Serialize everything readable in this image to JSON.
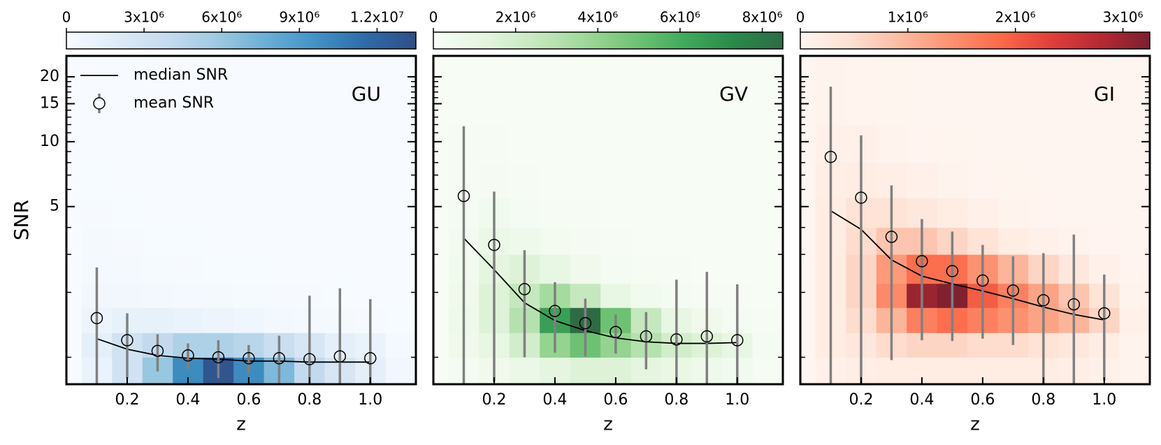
{
  "chart_data": [
    {
      "type": "heatmap",
      "label": "GU",
      "xlabel": "z",
      "ylabel": "SNR",
      "xlim": [
        0,
        1.15
      ],
      "xticks": [
        0.2,
        0.4,
        0.6,
        0.8,
        {
          "value": 1.0,
          "label": "1.0"
        }
      ],
      "ylim": [
        0.75,
        25
      ],
      "yscale": "log",
      "yticks": [
        5,
        10,
        15,
        20
      ],
      "yminor": [
        1,
        2,
        3,
        4,
        6,
        7,
        8,
        9,
        11,
        12,
        13,
        14,
        16,
        17,
        18,
        19
      ],
      "x_edges": [
        0.05,
        0.15,
        0.25,
        0.35,
        0.45,
        0.55,
        0.65,
        0.75,
        0.85,
        0.95,
        1.05,
        1.15
      ],
      "y_edges": [
        0.75,
        1,
        1.3,
        1.7,
        2.2,
        3,
        4,
        5.5,
        8,
        12,
        25
      ],
      "counts": [
        [
          1000000,
          3000000,
          6000000,
          10000000,
          13000000,
          10000000,
          7000000,
          4000000,
          2500000,
          1500000,
          500000
        ],
        [
          1500000,
          3000000,
          4000000,
          5000000,
          5000000,
          4500000,
          3500000,
          2500000,
          1500000,
          1000000,
          300000
        ],
        [
          800000,
          1200000,
          1200000,
          1000000,
          800000,
          600000,
          400000,
          300000,
          200000,
          100000,
          50000
        ],
        [
          500000,
          500000,
          400000,
          300000,
          200000,
          150000,
          100000,
          80000,
          50000,
          30000,
          10000
        ],
        [
          300000,
          200000,
          150000,
          100000,
          60000,
          40000,
          30000,
          20000,
          10000,
          10000,
          0
        ],
        [
          200000,
          100000,
          60000,
          40000,
          20000,
          10000,
          10000,
          0,
          0,
          0,
          0
        ],
        [
          100000,
          50000,
          20000,
          10000,
          0,
          0,
          0,
          0,
          0,
          0,
          0
        ],
        [
          50000,
          20000,
          10000,
          0,
          0,
          0,
          0,
          0,
          0,
          0,
          0
        ],
        [
          20000,
          10000,
          0,
          0,
          0,
          0,
          0,
          0,
          0,
          0,
          0
        ],
        [
          10000,
          0,
          0,
          0,
          0,
          0,
          0,
          0,
          0,
          0,
          0
        ]
      ],
      "cmap": [
        "#f7fbff",
        "#deebf7",
        "#c6dbef",
        "#9ecae1",
        "#6baed6",
        "#4292c6",
        "#2f6aa8",
        "#2f4f86"
      ],
      "colorbar": {
        "lim": [
          0,
          13500000
        ],
        "ticks": [
          0,
          {
            "value": 3000000,
            "label": "3x10⁶"
          },
          {
            "value": 6000000,
            "label": "6x10⁶"
          },
          {
            "value": 9000000,
            "label": "9x10⁶"
          },
          {
            "value": 12000000,
            "label": "1.2x10⁷"
          }
        ]
      },
      "legend": "upper left",
      "series": [
        {
          "name": "median SNR",
          "type": "line",
          "color": "#000000",
          "x": [
            0.1,
            0.2,
            0.3,
            0.4,
            0.5,
            0.6,
            0.7,
            0.8,
            0.9,
            1.0
          ],
          "values": [
            1.22,
            1.09,
            1.02,
            0.99,
            0.98,
            0.96,
            0.96,
            0.95,
            0.95,
            0.95
          ]
        },
        {
          "name": "mean SNR",
          "type": "errorbar",
          "color": "#808080",
          "x": [
            0.1,
            0.2,
            0.3,
            0.4,
            0.5,
            0.6,
            0.7,
            0.8,
            0.9,
            1.0
          ],
          "values": [
            1.52,
            1.2,
            1.07,
            1.02,
            1.0,
            0.99,
            0.99,
            0.98,
            1.01,
            0.99
          ],
          "errors": [
            1.09,
            0.4,
            0.21,
            0.14,
            0.2,
            0.15,
            0.27,
            0.95,
            1.08,
            0.87
          ]
        }
      ]
    },
    {
      "type": "heatmap",
      "label": "GV",
      "xlabel": "z",
      "xlim": [
        0,
        1.15
      ],
      "xticks": [
        0.2,
        0.4,
        0.6,
        0.8,
        {
          "value": 1.0,
          "label": "1.0"
        }
      ],
      "ylim": [
        0.75,
        25
      ],
      "yscale": "log",
      "yticks": [
        5,
        10,
        15,
        20
      ],
      "yminor": [
        1,
        2,
        3,
        4,
        6,
        7,
        8,
        9,
        11,
        12,
        13,
        14,
        16,
        17,
        18,
        19
      ],
      "x_edges": [
        0.05,
        0.15,
        0.25,
        0.35,
        0.45,
        0.55,
        0.65,
        0.75,
        0.85,
        0.95,
        1.05,
        1.15
      ],
      "y_edges": [
        0.75,
        1,
        1.3,
        1.7,
        2.2,
        3,
        4,
        5.5,
        8,
        12,
        25
      ],
      "counts": [
        [
          200000,
          500000,
          800000,
          1200000,
          1500000,
          1500000,
          1200000,
          900000,
          600000,
          400000,
          100000
        ],
        [
          500000,
          1000000,
          2000000,
          4000000,
          5000000,
          4000000,
          3000000,
          2000000,
          1500000,
          1000000,
          200000
        ],
        [
          600000,
          1500000,
          3000000,
          6500000,
          8500000,
          5000000,
          2500000,
          1000000,
          500000,
          200000,
          50000
        ],
        [
          500000,
          1500000,
          2500000,
          3500000,
          2500000,
          1000000,
          400000,
          200000,
          100000,
          50000,
          10000
        ],
        [
          400000,
          1200000,
          1500000,
          1000000,
          500000,
          200000,
          100000,
          50000,
          20000,
          10000,
          0
        ],
        [
          300000,
          800000,
          600000,
          300000,
          150000,
          50000,
          20000,
          10000,
          0,
          0,
          0
        ],
        [
          200000,
          400000,
          200000,
          100000,
          40000,
          10000,
          0,
          0,
          0,
          0,
          0
        ],
        [
          100000,
          150000,
          60000,
          20000,
          10000,
          0,
          0,
          0,
          0,
          0,
          0
        ],
        [
          50000,
          40000,
          10000,
          0,
          0,
          0,
          0,
          0,
          0,
          0,
          0
        ],
        [
          20000,
          10000,
          0,
          0,
          0,
          0,
          0,
          0,
          0,
          0,
          0
        ]
      ],
      "cmap": [
        "#f7fcf5",
        "#e5f5e0",
        "#c7e9c0",
        "#a1d99b",
        "#74c476",
        "#41ab5d",
        "#2a8a4a",
        "#2e6b45"
      ],
      "colorbar": {
        "lim": [
          0,
          8500000
        ],
        "ticks": [
          0,
          {
            "value": 2000000,
            "label": "2x10⁶"
          },
          {
            "value": 4000000,
            "label": "4x10⁶"
          },
          {
            "value": 6000000,
            "label": "6x10⁶"
          },
          {
            "value": 8000000,
            "label": "8x10⁶"
          }
        ]
      },
      "series": [
        {
          "type": "line",
          "color": "#000000",
          "x": [
            0.1,
            0.2,
            0.3,
            0.4,
            0.5,
            0.6,
            0.7,
            0.8,
            0.9,
            1.0
          ],
          "values": [
            3.57,
            2.55,
            1.79,
            1.48,
            1.33,
            1.23,
            1.18,
            1.16,
            1.16,
            1.17
          ]
        },
        {
          "type": "errorbar",
          "color": "#808080",
          "x": [
            0.1,
            0.2,
            0.3,
            0.4,
            0.5,
            0.6,
            0.7,
            0.8,
            0.9,
            1.0
          ],
          "values": [
            5.6,
            3.32,
            2.07,
            1.64,
            1.44,
            1.31,
            1.25,
            1.21,
            1.25,
            1.2
          ],
          "errors": [
            6.2,
            2.55,
            1.07,
            0.59,
            0.43,
            0.27,
            0.37,
            1.08,
            1.24,
            0.98
          ]
        }
      ]
    },
    {
      "type": "heatmap",
      "label": "GI",
      "xlabel": "z",
      "xlim": [
        0,
        1.15
      ],
      "xticks": [
        0.2,
        0.4,
        0.6,
        0.8,
        {
          "value": 1.0,
          "label": "1.0"
        }
      ],
      "ylim": [
        0.75,
        25
      ],
      "yscale": "log",
      "yticks": [
        5,
        10,
        15,
        20
      ],
      "yminor": [
        1,
        2,
        3,
        4,
        6,
        7,
        8,
        9,
        11,
        12,
        13,
        14,
        16,
        17,
        18,
        19
      ],
      "x_edges": [
        0.05,
        0.15,
        0.25,
        0.35,
        0.45,
        0.55,
        0.65,
        0.75,
        0.85,
        0.95,
        1.05,
        1.15
      ],
      "y_edges": [
        0.75,
        1,
        1.3,
        1.7,
        2.2,
        3,
        4,
        5.5,
        8,
        12,
        25
      ],
      "counts": [
        [
          100000,
          150000,
          200000,
          200000,
          200000,
          200000,
          200000,
          200000,
          150000,
          100000,
          50000
        ],
        [
          200000,
          300000,
          500000,
          600000,
          600000,
          500000,
          500000,
          400000,
          300000,
          200000,
          50000
        ],
        [
          200000,
          500000,
          1000000,
          1600000,
          1800000,
          1600000,
          1400000,
          1200000,
          1000000,
          600000,
          100000
        ],
        [
          200000,
          600000,
          1500000,
          3000000,
          3200000,
          2000000,
          1600000,
          1200000,
          800000,
          400000,
          50000
        ],
        [
          200000,
          600000,
          1300000,
          1800000,
          1800000,
          1400000,
          1000000,
          600000,
          300000,
          100000,
          20000
        ],
        [
          200000,
          500000,
          800000,
          800000,
          600000,
          400000,
          200000,
          100000,
          50000,
          20000,
          0
        ],
        [
          200000,
          400000,
          400000,
          300000,
          200000,
          100000,
          50000,
          20000,
          0,
          0,
          0
        ],
        [
          150000,
          200000,
          150000,
          100000,
          50000,
          20000,
          10000,
          0,
          0,
          0,
          0
        ],
        [
          100000,
          100000,
          50000,
          20000,
          10000,
          0,
          0,
          0,
          0,
          0,
          0
        ],
        [
          50000,
          30000,
          10000,
          0,
          0,
          0,
          0,
          0,
          0,
          0,
          0
        ]
      ],
      "cmap": [
        "#fff5f0",
        "#fee0d2",
        "#fcbba1",
        "#fc9272",
        "#fb6a4a",
        "#e0403a",
        "#b52a32",
        "#7a2030"
      ],
      "colorbar": {
        "lim": [
          0,
          3250000
        ],
        "ticks": [
          0,
          {
            "value": 1000000,
            "label": "1x10⁶"
          },
          {
            "value": 2000000,
            "label": "2x10⁶"
          },
          {
            "value": 3000000,
            "label": "3x10⁶"
          }
        ]
      },
      "series": [
        {
          "type": "line",
          "color": "#000000",
          "x": [
            0.1,
            0.2,
            0.3,
            0.4,
            0.5,
            0.6,
            0.7,
            0.8,
            0.9,
            1.0
          ],
          "values": [
            4.78,
            3.92,
            2.83,
            2.38,
            2.19,
            2.03,
            1.87,
            1.71,
            1.58,
            1.49
          ]
        },
        {
          "type": "errorbar",
          "color": "#808080",
          "x": [
            0.1,
            0.2,
            0.3,
            0.4,
            0.5,
            0.6,
            0.7,
            0.8,
            0.9,
            1.0
          ],
          "values": [
            8.5,
            5.5,
            3.62,
            2.79,
            2.51,
            2.27,
            2.04,
            1.84,
            1.76,
            1.6
          ],
          "errors": [
            9.5,
            5.2,
            2.65,
            1.59,
            1.32,
            1.05,
            0.9,
            1.2,
            1.95,
            0.82
          ]
        }
      ]
    }
  ]
}
